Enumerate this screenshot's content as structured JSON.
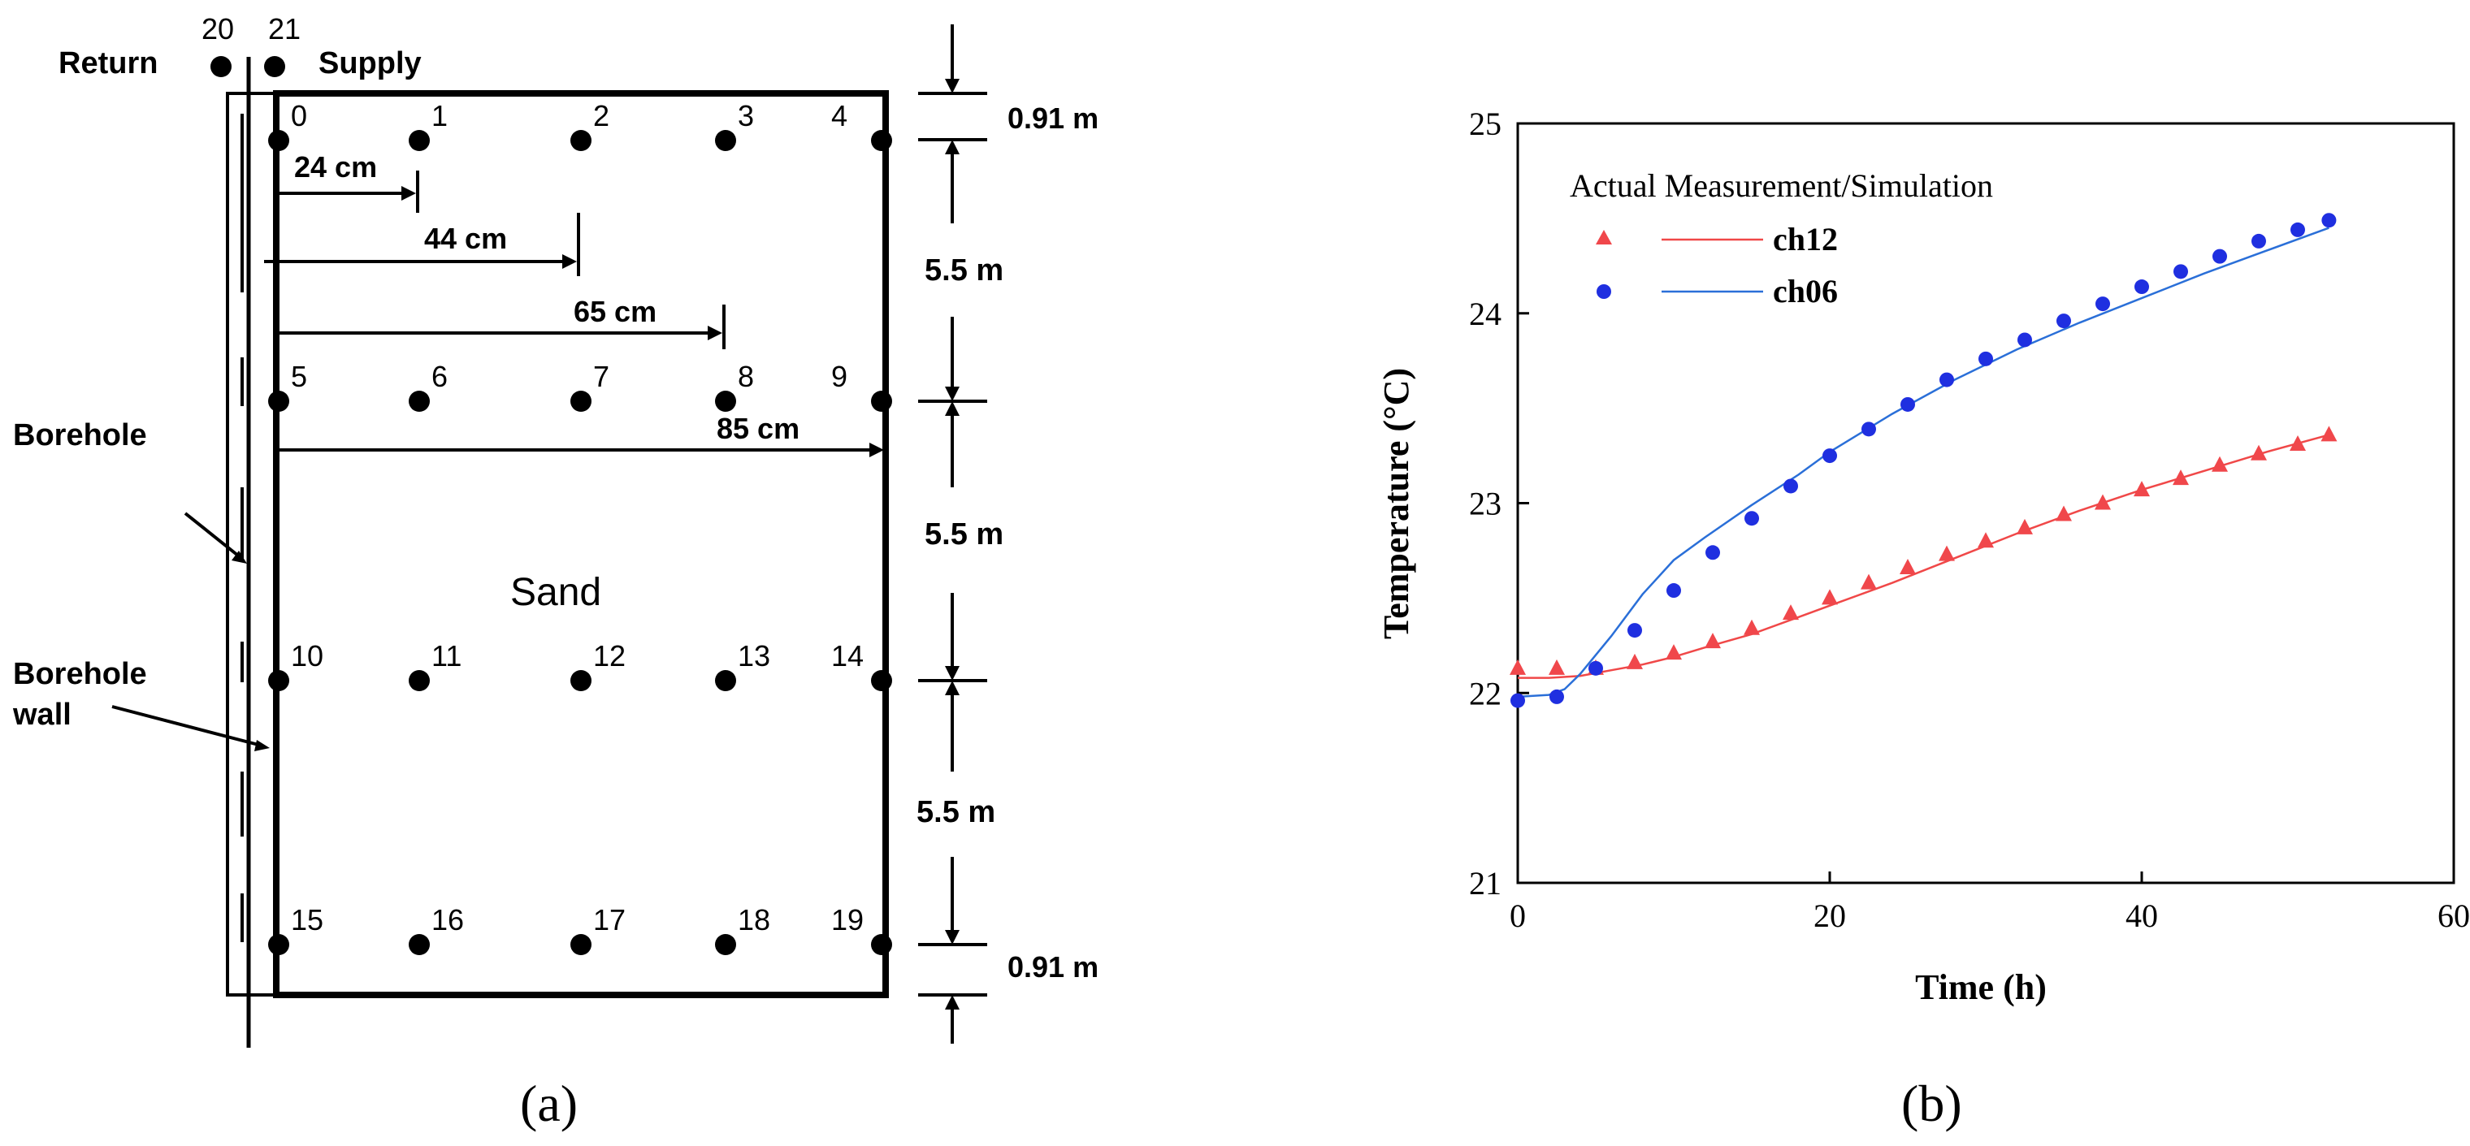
{
  "panel_a": {
    "caption": "(a)",
    "return_label": "Return",
    "supply_label": "Supply",
    "return_num": "20",
    "supply_num": "21",
    "borehole_label": "Borehole",
    "borehole_wall_label_1": "Borehole",
    "borehole_wall_label_2": "wall",
    "sand_label": "Sand",
    "point_labels": [
      "0",
      "1",
      "2",
      "3",
      "4",
      "5",
      "6",
      "7",
      "8",
      "9",
      "10",
      "11",
      "12",
      "13",
      "14",
      "15",
      "16",
      "17",
      "18",
      "19"
    ],
    "distances": [
      "24 cm",
      "44 cm",
      "65 cm",
      "85 cm"
    ],
    "depths": [
      "0.91 m",
      "5.5 m",
      "5.5 m",
      "5.5 m",
      "0.91 m"
    ]
  },
  "panel_b": {
    "caption": "(b)",
    "legend_title": "Actual Measurement/Simulation",
    "colors": {
      "ch12": "#f0474b",
      "ch06": "#1f2fe0",
      "ch12_line": "#f04848",
      "ch06_line": "#2a6fd8"
    }
  },
  "chart_data": {
    "type": "scatter",
    "title": "",
    "xlabel": "Time (h)",
    "ylabel": "Temperature (°C)",
    "xlim": [
      0,
      60
    ],
    "ylim": [
      21,
      25
    ],
    "xticks": [
      0,
      20,
      40,
      60
    ],
    "yticks": [
      21,
      22,
      23,
      24,
      25
    ],
    "series": [
      {
        "name": "ch12",
        "marker": "triangle",
        "measured_x": [
          0,
          2.5,
          5,
          7.5,
          10,
          12.5,
          15,
          17.5,
          20,
          22.5,
          25,
          27.5,
          30,
          32.5,
          35,
          37.5,
          40,
          42.5,
          45,
          47.5,
          50,
          52
        ],
        "measured_y": [
          22.13,
          22.13,
          22.13,
          22.16,
          22.21,
          22.27,
          22.34,
          22.42,
          22.5,
          22.58,
          22.66,
          22.73,
          22.8,
          22.87,
          22.94,
          23.0,
          23.07,
          23.13,
          23.2,
          23.26,
          23.31,
          23.36
        ],
        "sim_x": [
          0,
          2,
          4,
          6,
          8,
          10,
          12,
          15,
          18,
          20,
          24,
          28,
          32,
          36,
          40,
          44,
          48,
          52
        ],
        "sim_y": [
          22.08,
          22.08,
          22.09,
          22.12,
          22.15,
          22.19,
          22.24,
          22.31,
          22.4,
          22.46,
          22.58,
          22.71,
          22.84,
          22.96,
          23.07,
          23.17,
          23.27,
          23.36
        ]
      },
      {
        "name": "ch06",
        "marker": "circle",
        "measured_x": [
          0,
          2.5,
          5,
          7.5,
          10,
          12.5,
          15,
          17.5,
          20,
          22.5,
          25,
          27.5,
          30,
          32.5,
          35,
          37.5,
          40,
          42.5,
          45,
          47.5,
          50,
          52
        ],
        "measured_y": [
          21.96,
          21.98,
          22.13,
          22.33,
          22.54,
          22.74,
          22.92,
          23.09,
          23.25,
          23.39,
          23.52,
          23.65,
          23.76,
          23.86,
          23.96,
          24.05,
          24.14,
          24.22,
          24.3,
          24.38,
          24.44,
          24.49
        ],
        "sim_x": [
          0,
          2,
          3,
          4,
          6,
          8,
          10,
          12,
          15,
          18,
          20,
          24,
          28,
          32,
          36,
          40,
          44,
          48,
          52
        ],
        "sim_y": [
          21.98,
          21.99,
          22.02,
          22.1,
          22.3,
          22.52,
          22.7,
          22.82,
          22.99,
          23.15,
          23.27,
          23.47,
          23.65,
          23.81,
          23.95,
          24.08,
          24.21,
          24.33,
          24.45
        ]
      }
    ]
  }
}
